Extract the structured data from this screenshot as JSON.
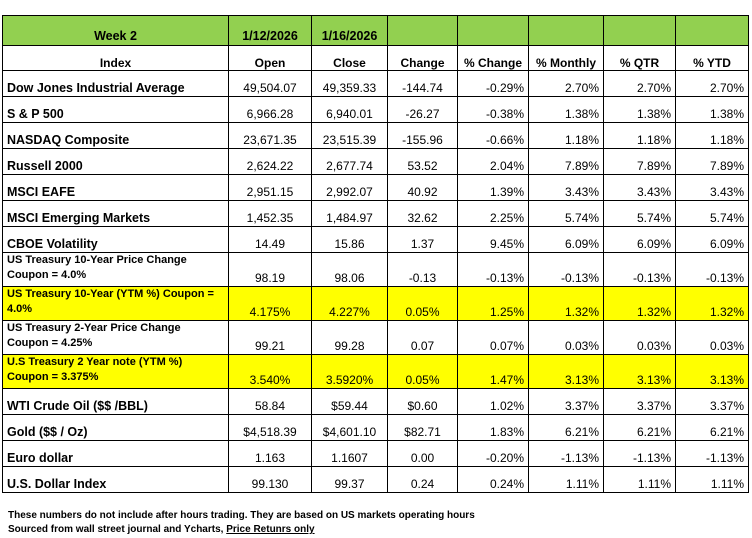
{
  "header": {
    "week": "Week 2",
    "date_open": "1/12/2026",
    "date_close": "1/16/2026"
  },
  "columns": [
    "Index",
    "Open",
    "Close",
    "Change",
    "% Change",
    "% Monthly",
    "% QTR",
    "% YTD"
  ],
  "rows": [
    {
      "name": "Dow Jones Industrial Average",
      "open": "49,504.07",
      "close": "49,359.33",
      "change": "-144.74",
      "pct_change": "-0.29%",
      "monthly": "2.70%",
      "qtr": "2.70%",
      "ytd": "2.70%"
    },
    {
      "name": "S & P 500",
      "open": "6,966.28",
      "close": "6,940.01",
      "change": "-26.27",
      "pct_change": "-0.38%",
      "monthly": "1.38%",
      "qtr": "1.38%",
      "ytd": "1.38%"
    },
    {
      "name": "NASDAQ Composite",
      "open": "23,671.35",
      "close": "23,515.39",
      "change": "-155.96",
      "pct_change": "-0.66%",
      "monthly": "1.18%",
      "qtr": "1.18%",
      "ytd": "1.18%"
    },
    {
      "name": "Russell 2000",
      "open": "2,624.22",
      "close": "2,677.74",
      "change": "53.52",
      "pct_change": "2.04%",
      "monthly": "7.89%",
      "qtr": "7.89%",
      "ytd": "7.89%"
    },
    {
      "name": "MSCI EAFE",
      "open": "2,951.15",
      "close": "2,992.07",
      "change": "40.92",
      "pct_change": "1.39%",
      "monthly": "3.43%",
      "qtr": "3.43%",
      "ytd": "3.43%"
    },
    {
      "name": "MSCI Emerging Markets",
      "open": "1,452.35",
      "close": "1,484.97",
      "change": "32.62",
      "pct_change": "2.25%",
      "monthly": "5.74%",
      "qtr": "5.74%",
      "ytd": "5.74%"
    },
    {
      "name": "CBOE Volatility",
      "open": "14.49",
      "close": "15.86",
      "change": "1.37",
      "pct_change": "9.45%",
      "monthly": "6.09%",
      "qtr": "6.09%",
      "ytd": "6.09%"
    },
    {
      "name": "US Treasury 10-Year Price Change Coupon = 4.0%",
      "open": "98.19",
      "close": "98.06",
      "change": "-0.13",
      "pct_change": "-0.13%",
      "monthly": "-0.13%",
      "qtr": "-0.13%",
      "ytd": "-0.13%"
    },
    {
      "name": "US Treasury 10-Year (YTM %) Coupon = 4.0%",
      "open": "4.175%",
      "close": "4.227%",
      "change": "0.05%",
      "pct_change": "1.25%",
      "monthly": "1.32%",
      "qtr": "1.32%",
      "ytd": "1.32%"
    },
    {
      "name": "US Treasury 2-Year Price Change Coupon = 4.25%",
      "open": "99.21",
      "close": "99.28",
      "change": "0.07",
      "pct_change": "0.07%",
      "monthly": "0.03%",
      "qtr": "0.03%",
      "ytd": "0.03%"
    },
    {
      "name": "U.S Treasury 2 Year note (YTM %) Coupon = 3.375%",
      "open": "3.540%",
      "close": "3.5920%",
      "change": "0.05%",
      "pct_change": "1.47%",
      "monthly": "3.13%",
      "qtr": "3.13%",
      "ytd": "3.13%"
    },
    {
      "name": "WTI Crude Oil ($$ /BBL)",
      "open": "58.84",
      "close": "$59.44",
      "change": "$0.60",
      "pct_change": "1.02%",
      "monthly": "3.37%",
      "qtr": "3.37%",
      "ytd": "3.37%"
    },
    {
      "name": "Gold  ($$ / Oz)",
      "open": "$4,518.39",
      "close": "$4,601.10",
      "change": "$82.71",
      "pct_change": "1.83%",
      "monthly": "6.21%",
      "qtr": "6.21%",
      "ytd": "6.21%"
    },
    {
      "name": "Euro dollar",
      "open": "1.163",
      "close": "1.1607",
      "change": "0.00",
      "pct_change": "-0.20%",
      "monthly": "-1.13%",
      "qtr": "-1.13%",
      "ytd": "-1.13%"
    },
    {
      "name": "U.S. Dollar Index",
      "open": "99.130",
      "close": "99.37",
      "change": "0.24",
      "pct_change": "0.24%",
      "monthly": "1.11%",
      "qtr": "1.11%",
      "ytd": "1.11%"
    }
  ],
  "notes": {
    "line1": "These numbers do not include after hours trading. They are based on US markets operating hours",
    "line2_prefix": "Sourced from wall street journal and Ycharts, ",
    "line2_link": "Price Retunrs only"
  },
  "colors": {
    "header_green": "#92d050",
    "highlight_yellow": "#ffff00"
  }
}
